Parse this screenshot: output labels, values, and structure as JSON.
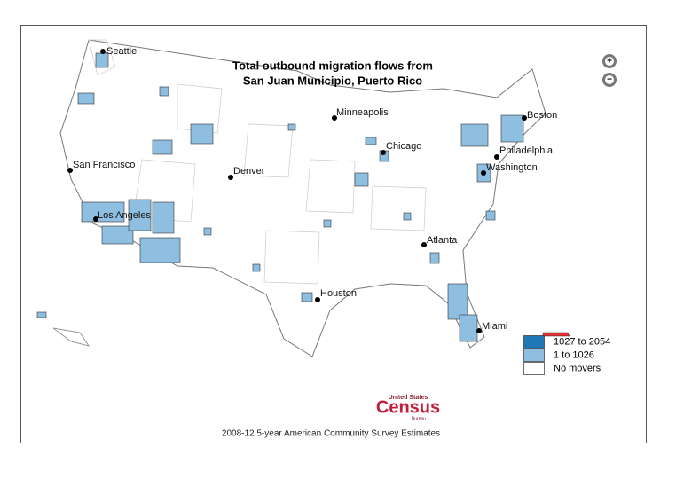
{
  "header": {
    "title_lines": [
      "Total outbound migration flows from",
      "San Juan Municipio, Puerto Rico"
    ]
  },
  "zoom": {
    "in": "+",
    "out": "−"
  },
  "cities": [
    {
      "name": "Seattle"
    },
    {
      "name": "San Francisco"
    },
    {
      "name": "Los Angeles"
    },
    {
      "name": "Denver"
    },
    {
      "name": "Minneapolis"
    },
    {
      "name": "Chicago"
    },
    {
      "name": "Boston"
    },
    {
      "name": "Philadelphia"
    },
    {
      "name": "Washington"
    },
    {
      "name": "Atlanta"
    },
    {
      "name": "Houston"
    },
    {
      "name": "Miami"
    }
  ],
  "legend": {
    "items": [
      {
        "label": "1027 to 2054",
        "color": "#1f78b4"
      },
      {
        "label": "1 to 1026",
        "color": "#8fbfe0"
      },
      {
        "label": "No movers",
        "color": "#ffffff"
      }
    ]
  },
  "logo": {
    "top": "United States",
    "main": "Census",
    "bottom": "Bureau"
  },
  "footer": "2008-12 5-year American Community Survey Estimates"
}
